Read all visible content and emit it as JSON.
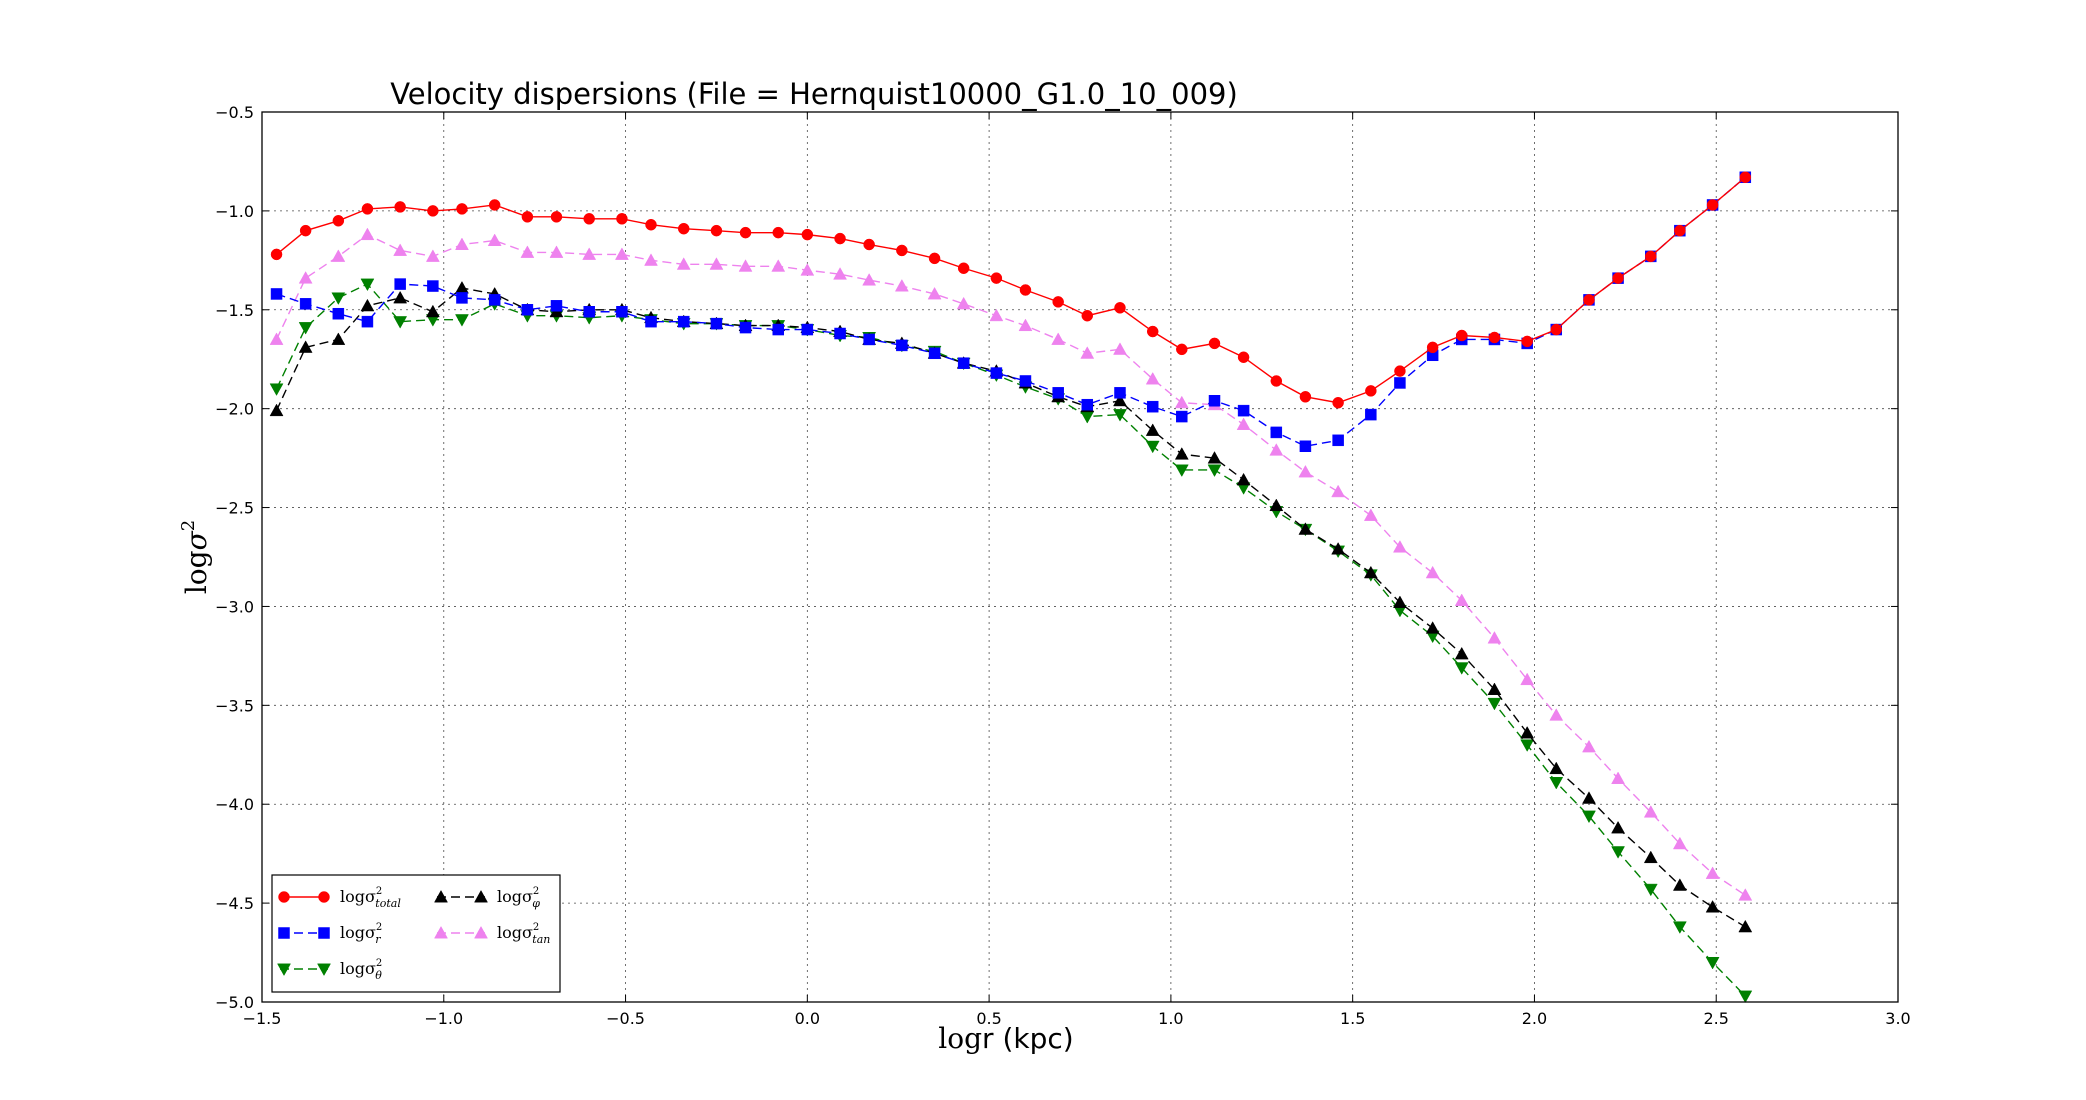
{
  "chart_data": {
    "type": "line",
    "title": "Velocity dispersions (File = Hernquist10000_G1.0_10_009)",
    "xlabel": {
      "main": "log",
      "rest": "r (kpc)"
    },
    "ylabel": {
      "main": "log",
      "sym": "σ",
      "sup": "2"
    },
    "xlim": [
      -1.5,
      3.0
    ],
    "ylim": [
      -5.0,
      -0.5
    ],
    "xticks": [
      -1.5,
      -1.0,
      -0.5,
      0.0,
      0.5,
      1.0,
      1.5,
      2.0,
      2.5,
      3.0
    ],
    "xtick_labels": [
      "−1.5",
      "−1.0",
      "−0.5",
      "0.0",
      "0.5",
      "1.0",
      "1.5",
      "2.0",
      "2.5",
      "3.0"
    ],
    "yticks": [
      -0.5,
      -1.0,
      -1.5,
      -2.0,
      -2.5,
      -3.0,
      -3.5,
      -4.0,
      -4.5,
      -5.0
    ],
    "ytick_labels": [
      "−0.5",
      "−1.0",
      "−1.5",
      "−2.0",
      "−2.5",
      "−3.0",
      "−3.5",
      "−4.0",
      "−4.5",
      "−5.0"
    ],
    "grid": true,
    "legend_position": "lower-left",
    "x": [
      -1.46,
      -1.38,
      -1.29,
      -1.21,
      -1.12,
      -1.03,
      -0.95,
      -0.86,
      -0.77,
      -0.69,
      -0.6,
      -0.51,
      -0.43,
      -0.34,
      -0.25,
      -0.17,
      -0.08,
      0.0,
      0.09,
      0.17,
      0.26,
      0.35,
      0.43,
      0.52,
      0.6,
      0.69,
      0.77,
      0.86,
      0.95,
      1.03,
      1.12,
      1.2,
      1.29,
      1.37,
      1.46,
      1.55,
      1.63,
      1.72,
      1.8,
      1.89,
      1.98,
      2.06,
      2.15,
      2.23,
      2.32,
      2.4,
      2.49,
      2.58
    ],
    "series": [
      {
        "legend_main": "logσ",
        "legend_sup": "2",
        "legend_sub": "total",
        "color": "#ff0000",
        "marker": "circle",
        "linestyle": "solid",
        "values": [
          -1.22,
          -1.1,
          -1.05,
          -0.99,
          -0.98,
          -1.0,
          -0.99,
          -0.97,
          -1.03,
          -1.03,
          -1.04,
          -1.04,
          -1.07,
          -1.09,
          -1.1,
          -1.11,
          -1.11,
          -1.12,
          -1.14,
          -1.17,
          -1.2,
          -1.24,
          -1.29,
          -1.34,
          -1.4,
          -1.46,
          -1.53,
          -1.49,
          -1.61,
          -1.7,
          -1.67,
          -1.74,
          -1.86,
          -1.94,
          -1.97,
          -1.91,
          -1.81,
          -1.69,
          -1.63,
          -1.64,
          -1.66,
          -1.6,
          -1.45,
          -1.34,
          -1.23,
          -1.1,
          -0.97,
          -0.83
        ]
      },
      {
        "legend_main": "logσ",
        "legend_sup": "2",
        "legend_sub": "r",
        "color": "#0000ff",
        "marker": "square",
        "linestyle": "dashed",
        "values": [
          -1.42,
          -1.47,
          -1.52,
          -1.56,
          -1.37,
          -1.38,
          -1.44,
          -1.45,
          -1.5,
          -1.48,
          -1.51,
          -1.51,
          -1.56,
          -1.56,
          -1.57,
          -1.59,
          -1.6,
          -1.6,
          -1.62,
          -1.65,
          -1.68,
          -1.72,
          -1.77,
          -1.82,
          -1.86,
          -1.92,
          -1.98,
          -1.92,
          -1.99,
          -2.04,
          -1.96,
          -2.01,
          -2.12,
          -2.19,
          -2.16,
          -2.03,
          -1.87,
          -1.73,
          -1.65,
          -1.65,
          -1.67,
          -1.6,
          -1.45,
          -1.34,
          -1.23,
          -1.1,
          -0.97,
          -0.83
        ]
      },
      {
        "legend_main": "logσ",
        "legend_sup": "2",
        "legend_sub": "θ",
        "color": "#008000",
        "marker": "triangle-down",
        "linestyle": "dashed",
        "values": [
          -1.9,
          -1.59,
          -1.44,
          -1.37,
          -1.56,
          -1.55,
          -1.55,
          -1.47,
          -1.53,
          -1.53,
          -1.54,
          -1.53,
          -1.55,
          -1.57,
          -1.57,
          -1.58,
          -1.58,
          -1.6,
          -1.63,
          -1.64,
          -1.68,
          -1.71,
          -1.77,
          -1.83,
          -1.89,
          -1.95,
          -2.04,
          -2.03,
          -2.19,
          -2.31,
          -2.31,
          -2.4,
          -2.52,
          -2.61,
          -2.72,
          -2.84,
          -3.02,
          -3.15,
          -3.31,
          -3.49,
          -3.7,
          -3.89,
          -4.06,
          -4.24,
          -4.43,
          -4.62,
          -4.8,
          -4.97
        ]
      },
      {
        "legend_main": "logσ",
        "legend_sup": "2",
        "legend_sub": "φ",
        "color": "#000000",
        "marker": "triangle-up",
        "linestyle": "dashed",
        "values": [
          -2.01,
          -1.69,
          -1.65,
          -1.48,
          -1.44,
          -1.51,
          -1.39,
          -1.42,
          -1.5,
          -1.51,
          -1.5,
          -1.5,
          -1.54,
          -1.56,
          -1.57,
          -1.58,
          -1.58,
          -1.59,
          -1.61,
          -1.65,
          -1.67,
          -1.72,
          -1.77,
          -1.81,
          -1.87,
          -1.94,
          -1.99,
          -1.96,
          -2.11,
          -2.23,
          -2.25,
          -2.36,
          -2.49,
          -2.61,
          -2.71,
          -2.83,
          -2.98,
          -3.11,
          -3.24,
          -3.42,
          -3.64,
          -3.82,
          -3.97,
          -4.12,
          -4.27,
          -4.41,
          -4.52,
          -4.62
        ]
      },
      {
        "legend_main": "logσ",
        "legend_sup": "2",
        "legend_sub": "tan",
        "color": "#ee82ee",
        "marker": "triangle-up",
        "linestyle": "dashed",
        "values": [
          -1.65,
          -1.34,
          -1.23,
          -1.12,
          -1.2,
          -1.23,
          -1.17,
          -1.15,
          -1.21,
          -1.21,
          -1.22,
          -1.22,
          -1.25,
          -1.27,
          -1.27,
          -1.28,
          -1.28,
          -1.3,
          -1.32,
          -1.35,
          -1.38,
          -1.42,
          -1.47,
          -1.53,
          -1.58,
          -1.65,
          -1.72,
          -1.7,
          -1.85,
          -1.97,
          -1.98,
          -2.08,
          -2.21,
          -2.32,
          -2.42,
          -2.54,
          -2.7,
          -2.83,
          -2.97,
          -3.16,
          -3.37,
          -3.55,
          -3.71,
          -3.87,
          -4.04,
          -4.2,
          -4.35,
          -4.46
        ]
      }
    ]
  }
}
